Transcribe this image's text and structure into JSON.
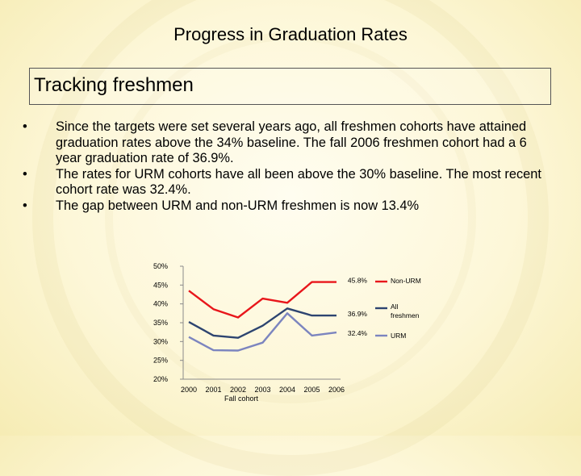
{
  "slide": {
    "title": "Progress in Graduation Rates",
    "subtitle": "Tracking freshmen",
    "bullet_marker": "•",
    "bullets": [
      "Since the targets were set several years ago, all freshmen cohorts have attained graduation rates above the 34% baseline.  The fall 2006 freshmen cohort had a 6 year graduation rate of 36.9%.",
      "The rates for URM cohorts have all been above the 30% baseline.  The most recent cohort rate was 32.4%.",
      "The gap between URM and non-URM freshmen is now 13.4%"
    ]
  },
  "chart_data": {
    "type": "line",
    "title": "",
    "xlabel": "Fall cohort",
    "ylabel": "",
    "categories": [
      "2000",
      "2001",
      "2002",
      "2003",
      "2004",
      "2005",
      "2006"
    ],
    "y_ticks": [
      "20%",
      "25%",
      "30%",
      "35%",
      "40%",
      "45%",
      "50%"
    ],
    "ylim": [
      20,
      50
    ],
    "grid": false,
    "legend_position": "right",
    "series": [
      {
        "name": "Non-URM",
        "color": "#e8161b",
        "values": [
          43.5,
          38.6,
          36.4,
          41.4,
          40.3,
          45.8,
          45.8
        ],
        "end_label": "45.8%"
      },
      {
        "name": "All freshmen",
        "color": "#2d4470",
        "values": [
          35.2,
          31.6,
          31.0,
          34.2,
          38.8,
          36.9,
          36.9
        ],
        "end_label": "36.9%"
      },
      {
        "name": "URM",
        "color": "#7c85bf",
        "values": [
          31.2,
          27.7,
          27.6,
          29.7,
          37.5,
          31.6,
          32.4
        ],
        "end_label": "32.4%"
      }
    ]
  }
}
